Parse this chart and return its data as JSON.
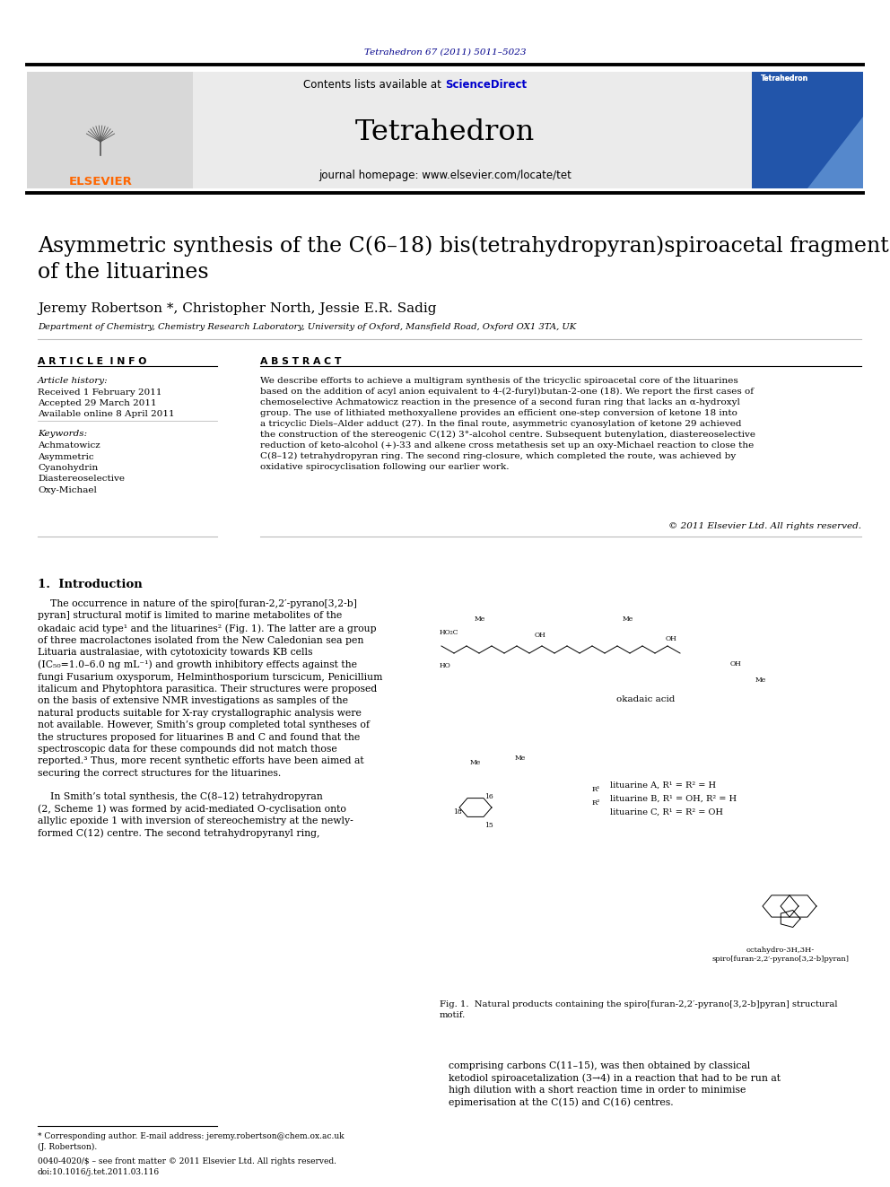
{
  "page_bg": "#ffffff",
  "top_url": "Tetrahedron 67 (2011) 5011–5023",
  "top_url_color": "#00008B",
  "header_bg": "#E8E8E8",
  "header_text": "Tetrahedron",
  "header_subtext": "journal homepage: www.elsevier.com/locate/tet",
  "header_contents_text": "Contents lists available at ScienceDirect",
  "sciencedirect_color": "#0000CD",
  "elsevier_color": "#FF6600",
  "title": "Asymmetric synthesis of the C(6–18) bis(tetrahydropyran)spiroacetal fragment\nof the lituarines",
  "authors": "Jeremy Robertson *, Christopher North, Jessie E.R. Sadig",
  "affiliation": "Department of Chemistry, Chemistry Research Laboratory, University of Oxford, Mansfield Road, Oxford OX1 3TA, UK",
  "article_info_header": "A R T I C L E  I N F O",
  "abstract_header": "A B S T R A C T",
  "article_history_label": "Article history:",
  "received": "Received 1 February 2011",
  "accepted": "Accepted 29 March 2011",
  "available": "Available online 8 April 2011",
  "keywords_label": "Keywords:",
  "keywords": [
    "Achmatowicz",
    "Asymmetric",
    "Cyanohydrin",
    "Diastereoselective",
    "Oxy-Michael"
  ],
  "abstract_text": "We describe efforts to achieve a multigram synthesis of the tricyclic spiroacetal core of the lituarines\nbased on the addition of acyl anion equivalent to 4-(2-furyl)butan-2-one (18). We report the first cases of\nchemoselective Achmatowicz reaction in the presence of a second furan ring that lacks an α-hydroxyl\ngroup. The use of lithiated methoxyallene provides an efficient one-step conversion of ketone 18 into\na tricyclic Diels–Alder adduct (27). In the final route, asymmetric cyanosylation of ketone 29 achieved\nthe construction of the stereogenic C(12) 3°-alcohol centre. Subsequent butenylation, diastereoselective\nreduction of keto-alcohol (+)-33 and alkene cross metathesis set up an oxy-Michael reaction to close the\nC(8–12) tetrahydropyran ring. The second ring-closure, which completed the route, was achieved by\noxidative spirocyclisation following our earlier work.",
  "copyright": "© 2011 Elsevier Ltd. All rights reserved.",
  "section1_header": "1.  Introduction",
  "intro_para1": "    The occurrence in nature of the spiro[furan-2,2′-pyrano[3,2-b]\npyran] structural motif is limited to marine metabolites of the\nokadaic acid type¹ and the lituarines² (Fig. 1). The latter are a group\nof three macrolactones isolated from the New Caledonian sea pen\nLituaria australasiae, with cytotoxicity towards KB cells\n(IC₅₀=1.0–6.0 ng mL⁻¹) and growth inhibitory effects against the\nfungi Fusarium oxysporum, Helminthosporium turscicum, Penicillium\nitalicum and Phytophtora parasitica. Their structures were proposed\non the basis of extensive NMR investigations as samples of the\nnatural products suitable for X-ray crystallographic analysis were\nnot available. However, Smith’s group completed total syntheses of\nthe structures proposed for lituarines B and C and found that the\nspectroscopic data for these compounds did not match those\nreported.³ Thus, more recent synthetic efforts have been aimed at\nsecuring the correct structures for the lituarines.",
  "intro_para2": "    In Smith’s total synthesis, the C(8–12) tetrahydropyran\n(2, Scheme 1) was formed by acid-mediated O-cyclisation onto\nallylic epoxide 1 with inversion of stereochemistry at the newly-\nformed C(12) centre. The second tetrahydropyranyl ring,",
  "footnote1": "* Corresponding author. E-mail address: jeremy.robertson@chem.ox.ac.uk\n(J. Robertson).",
  "footnote2": "0040-4020/$ – see front matter © 2011 Elsevier Ltd. All rights reserved.\ndoi:10.1016/j.tet.2011.03.116",
  "right_col_text": "comprising carbons C(11–15), was then obtained by classical\nketodiol spiroacetalization (3→4) in a reaction that had to be run at\nhigh dilution with a short reaction time in order to minimise\nepimerisation at the C(15) and C(16) centres.",
  "fig1_caption": "Fig. 1.  Natural products containing the spiro[furan-2,2′-pyrano[3,2-b]pyran] structural\nmotif.",
  "text_color": "#000000",
  "line_color": "#000000"
}
